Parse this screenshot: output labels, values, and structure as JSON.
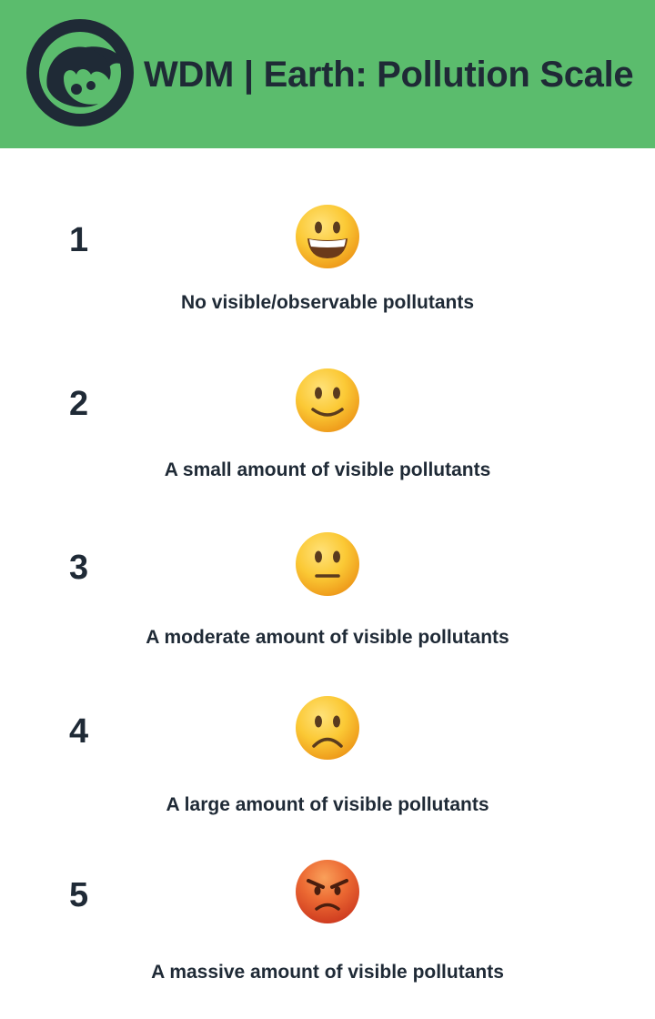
{
  "header": {
    "title": "WDM | Earth: Pollution Scale",
    "background_color": "#5bbc6d",
    "logo_icon": "wdm-wave-logo-icon"
  },
  "scale": {
    "levels": [
      {
        "number": "1",
        "description": "No visible/observable pollutants",
        "face_icon": "grinning-face-icon"
      },
      {
        "number": "2",
        "description": "A small amount of visible pollutants",
        "face_icon": "slightly-smiling-face-icon"
      },
      {
        "number": "3",
        "description": "A moderate amount of visible pollutants",
        "face_icon": "neutral-face-icon"
      },
      {
        "number": "4",
        "description": "A large amount of visible pollutants",
        "face_icon": "frowning-face-icon"
      },
      {
        "number": "5",
        "description": "A massive amount of visible pollutants",
        "face_icon": "angry-face-icon"
      }
    ]
  },
  "colors": {
    "text": "#1f2a36",
    "face_yellow": "#f9c23c",
    "face_angry": "#e0542c"
  }
}
